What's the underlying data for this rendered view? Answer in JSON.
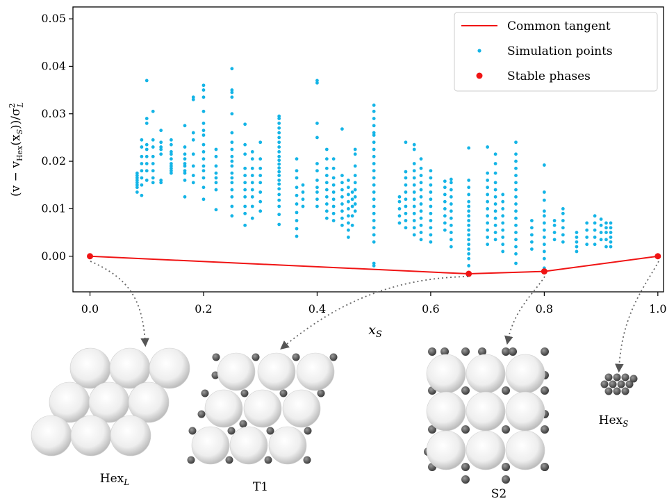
{
  "chart_data": {
    "type": "scatter",
    "xlabel": "x",
    "xlabel_sub": "S",
    "ylabel_parts": {
      "open": "(v − v",
      "sub": "Hex",
      "mid": "(x",
      "sub2": "S",
      "close": "))/σ",
      "sup": "2",
      "sub3": "L"
    },
    "xlim": [
      -0.03,
      1.01
    ],
    "ylim": [
      -0.0075,
      0.0525
    ],
    "x_ticks": [
      "0.0",
      "0.2",
      "0.4",
      "0.6",
      "0.8",
      "1.0"
    ],
    "x_tick_values": [
      0.0,
      0.2,
      0.4,
      0.6,
      0.8,
      1.0
    ],
    "y_ticks": [
      "0.00",
      "0.01",
      "0.02",
      "0.03",
      "0.04",
      "0.05"
    ],
    "y_tick_values": [
      0.0,
      0.01,
      0.02,
      0.03,
      0.04,
      0.05
    ],
    "grid": false,
    "legend_position": "top-right",
    "series": [
      {
        "name": "Common tangent",
        "kind": "line",
        "color": "#f01414",
        "x": [
          0.0,
          0.667,
          0.8,
          1.0
        ],
        "y": [
          0.0,
          -0.0037,
          -0.0032,
          0.0
        ]
      },
      {
        "name": "Simulation points",
        "kind": "scatter",
        "color": "#14b4e6",
        "columns": [
          {
            "x": 0.083,
            "y": [
              0.0135,
              0.0145,
              0.015,
              0.0155,
              0.016,
              0.0165,
              0.017,
              0.0175
            ]
          },
          {
            "x": 0.091,
            "y": [
              0.0128,
              0.015,
              0.0165,
              0.018,
              0.0195,
              0.021,
              0.023,
              0.0245
            ]
          },
          {
            "x": 0.1,
            "y": [
              0.016,
              0.018,
              0.0195,
              0.021,
              0.0225,
              0.0235,
              0.028,
              0.029,
              0.037
            ]
          },
          {
            "x": 0.111,
            "y": [
              0.0155,
              0.0165,
              0.018,
              0.0195,
              0.021,
              0.023,
              0.0245,
              0.0305
            ]
          },
          {
            "x": 0.125,
            "y": [
              0.0155,
              0.016,
              0.0215,
              0.0225,
              0.023,
              0.024,
              0.0265
            ]
          },
          {
            "x": 0.143,
            "y": [
              0.0175,
              0.018,
              0.0185,
              0.019,
              0.0195,
              0.0205,
              0.0215,
              0.022,
              0.0235,
              0.0245
            ]
          },
          {
            "x": 0.167,
            "y": [
              0.0125,
              0.016,
              0.0175,
              0.018,
              0.019,
              0.0195,
              0.0205,
              0.0215,
              0.023,
              0.0275
            ]
          },
          {
            "x": 0.182,
            "y": [
              0.0155,
              0.017,
              0.019,
              0.0215,
              0.0245,
              0.026,
              0.033,
              0.0335
            ]
          },
          {
            "x": 0.2,
            "y": [
              0.012,
              0.0145,
              0.0165,
              0.018,
              0.019,
              0.0205,
              0.022,
              0.0235,
              0.0255,
              0.0265,
              0.028,
              0.0305,
              0.0335,
              0.035,
              0.036
            ]
          },
          {
            "x": 0.222,
            "y": [
              0.0098,
              0.014,
              0.0155,
              0.0165,
              0.0175,
              0.019,
              0.021,
              0.0225
            ]
          },
          {
            "x": 0.25,
            "y": [
              0.0085,
              0.0105,
              0.0125,
              0.014,
              0.0155,
              0.0165,
              0.0175,
              0.019,
              0.02,
              0.021,
              0.0225,
              0.024,
              0.026,
              0.03,
              0.0335,
              0.0345,
              0.035,
              0.0395
            ]
          },
          {
            "x": 0.273,
            "y": [
              0.0065,
              0.009,
              0.0105,
              0.0125,
              0.014,
              0.0155,
              0.017,
              0.0185,
              0.0215,
              0.0235,
              0.0278
            ]
          },
          {
            "x": 0.286,
            "y": [
              0.008,
              0.0105,
              0.0125,
              0.014,
              0.0155,
              0.017,
              0.0185,
              0.0205,
              0.022
            ]
          },
          {
            "x": 0.3,
            "y": [
              0.0095,
              0.0115,
              0.0135,
              0.0155,
              0.017,
              0.0185,
              0.0205,
              0.024
            ]
          },
          {
            "x": 0.333,
            "y": [
              0.0067,
              0.0088,
              0.0105,
              0.0118,
              0.013,
              0.0142,
              0.0152,
              0.016,
              0.017,
              0.0178,
              0.0186,
              0.0194,
              0.0202,
              0.021,
              0.022,
              0.023,
              0.024,
              0.025,
              0.026,
              0.027,
              0.028,
              0.029,
              0.0295
            ]
          },
          {
            "x": 0.364,
            "y": [
              0.0042,
              0.0058,
              0.0075,
              0.0092,
              0.011,
              0.0128,
              0.0145,
              0.0165,
              0.018,
              0.0205
            ]
          },
          {
            "x": 0.375,
            "y": [
              0.0105,
              0.012,
              0.0135,
              0.015
            ]
          },
          {
            "x": 0.4,
            "y": [
              0.0105,
              0.012,
              0.0135,
              0.0145,
              0.016,
              0.018,
              0.0195,
              0.025,
              0.028,
              0.0365,
              0.037
            ]
          },
          {
            "x": 0.417,
            "y": [
              0.008,
              0.0095,
              0.011,
              0.0125,
              0.014,
              0.0155,
              0.017,
              0.0185,
              0.0205,
              0.0225
            ]
          },
          {
            "x": 0.429,
            "y": [
              0.0075,
              0.009,
              0.0105,
              0.012,
              0.0135,
              0.015,
              0.0165,
              0.0185,
              0.0205
            ]
          },
          {
            "x": 0.444,
            "y": [
              0.0065,
              0.008,
              0.0095,
              0.011,
              0.0125,
              0.014,
              0.0155,
              0.017,
              0.0268
            ]
          },
          {
            "x": 0.455,
            "y": [
              0.004,
              0.0055,
              0.007,
              0.0085,
              0.01,
              0.0115,
              0.013,
              0.0145,
              0.016
            ]
          },
          {
            "x": 0.462,
            "y": [
              0.0065,
              0.0085,
              0.0105,
              0.012,
              0.0135
            ]
          },
          {
            "x": 0.467,
            "y": [
              0.0095,
              0.011,
              0.0125,
              0.014,
              0.0155,
              0.017,
              0.019,
              0.0215,
              0.0225
            ]
          },
          {
            "x": 0.5,
            "y": [
              -0.002,
              -0.0015,
              0.003,
              0.0045,
              0.006,
              0.0075,
              0.009,
              0.0105,
              0.012,
              0.0135,
              0.015,
              0.0165,
              0.018,
              0.0195,
              0.021,
              0.0225,
              0.024,
              0.0255,
              0.026,
              0.0275,
              0.029,
              0.0305,
              0.0318
            ]
          },
          {
            "x": 0.545,
            "y": [
              0.007,
              0.0085,
              0.01,
              0.0115,
              0.0125
            ]
          },
          {
            "x": 0.556,
            "y": [
              0.006,
              0.0075,
              0.009,
              0.0105,
              0.012,
              0.0135,
              0.015,
              0.0165,
              0.0178,
              0.024
            ]
          },
          {
            "x": 0.571,
            "y": [
              0.0045,
              0.006,
              0.0075,
              0.009,
              0.0105,
              0.012,
              0.0135,
              0.015,
              0.0165,
              0.018,
              0.0195,
              0.0225,
              0.0235
            ]
          },
          {
            "x": 0.583,
            "y": [
              0.0035,
              0.005,
              0.0065,
              0.008,
              0.0095,
              0.011,
              0.0125,
              0.014,
              0.0155,
              0.017,
              0.0185,
              0.0205
            ]
          },
          {
            "x": 0.6,
            "y": [
              0.003,
              0.0045,
              0.006,
              0.0075,
              0.009,
              0.0105,
              0.012,
              0.0135,
              0.015,
              0.0165,
              0.018
            ]
          },
          {
            "x": 0.625,
            "y": [
              0.0055,
              0.007,
              0.0085,
              0.01,
              0.0115,
              0.013,
              0.0145,
              0.0158
            ]
          },
          {
            "x": 0.636,
            "y": [
              0.002,
              0.0035,
              0.005,
              0.0065,
              0.008,
              0.0095,
              0.011,
              0.0125,
              0.014,
              0.0155,
              0.0162
            ]
          },
          {
            "x": 0.667,
            "y": [
              -0.002,
              -0.0005,
              0.0005,
              0.0015,
              0.0025,
              0.0035,
              0.0045,
              0.0055,
              0.0065,
              0.0075,
              0.0085,
              0.0095,
              0.0105,
              0.0115,
              0.013,
              0.0145,
              0.016,
              0.0228
            ]
          },
          {
            "x": 0.7,
            "y": [
              0.0025,
              0.004,
              0.0055,
              0.007,
              0.0085,
              0.01,
              0.0115,
              0.013,
              0.0145,
              0.016,
              0.0175,
              0.023
            ]
          },
          {
            "x": 0.714,
            "y": [
              0.0035,
              0.005,
              0.0065,
              0.008,
              0.0095,
              0.011,
              0.0125,
              0.014,
              0.0155,
              0.0175,
              0.0195,
              0.0215
            ]
          },
          {
            "x": 0.727,
            "y": [
              0.001,
              0.0025,
              0.004,
              0.0055,
              0.007,
              0.0085,
              0.01,
              0.0115,
              0.013
            ]
          },
          {
            "x": 0.75,
            "y": [
              -0.0015,
              0.0005,
              0.002,
              0.0035,
              0.005,
              0.0065,
              0.008,
              0.0095,
              0.011,
              0.0125,
              0.014,
              0.0155,
              0.017,
              0.0185,
              0.02,
              0.0215,
              0.024
            ]
          },
          {
            "x": 0.778,
            "y": [
              0.0015,
              0.003,
              0.0045,
              0.006,
              0.0075
            ]
          },
          {
            "x": 0.8,
            "y": [
              -0.0025,
              -0.0005,
              0.001,
              0.0025,
              0.004,
              0.0055,
              0.007,
              0.0085,
              0.0095,
              0.0118,
              0.0135,
              0.0192
            ]
          },
          {
            "x": 0.818,
            "y": [
              0.0035,
              0.005,
              0.0065,
              0.0075
            ]
          },
          {
            "x": 0.833,
            "y": [
              0.003,
              0.0045,
              0.006,
              0.0075,
              0.009,
              0.01
            ]
          },
          {
            "x": 0.857,
            "y": [
              0.001,
              0.002,
              0.003,
              0.004,
              0.005
            ]
          },
          {
            "x": 0.875,
            "y": [
              0.0025,
              0.004,
              0.0055,
              0.007
            ]
          },
          {
            "x": 0.889,
            "y": [
              0.0025,
              0.004,
              0.0055,
              0.007,
              0.0085
            ]
          },
          {
            "x": 0.9,
            "y": [
              0.0035,
              0.005,
              0.0065,
              0.0078
            ]
          },
          {
            "x": 0.909,
            "y": [
              0.002,
              0.0035,
              0.005,
              0.006,
              0.007
            ]
          },
          {
            "x": 0.917,
            "y": [
              0.002,
              0.003,
              0.004,
              0.005,
              0.006,
              0.007
            ]
          }
        ]
      },
      {
        "name": "Stable phases",
        "kind": "scatter",
        "color": "#f01414",
        "x": [
          0.0,
          0.667,
          0.8,
          1.0
        ],
        "y": [
          0.0,
          -0.0037,
          -0.0032,
          0.0
        ]
      }
    ]
  },
  "structures": [
    {
      "label": "Hex",
      "sub": "L",
      "points_to": 0
    },
    {
      "label": "T1",
      "sub": "",
      "points_to": 1
    },
    {
      "label": "S2",
      "sub": "",
      "points_to": 2
    },
    {
      "label": "Hex",
      "sub": "S",
      "points_to": 3
    }
  ]
}
